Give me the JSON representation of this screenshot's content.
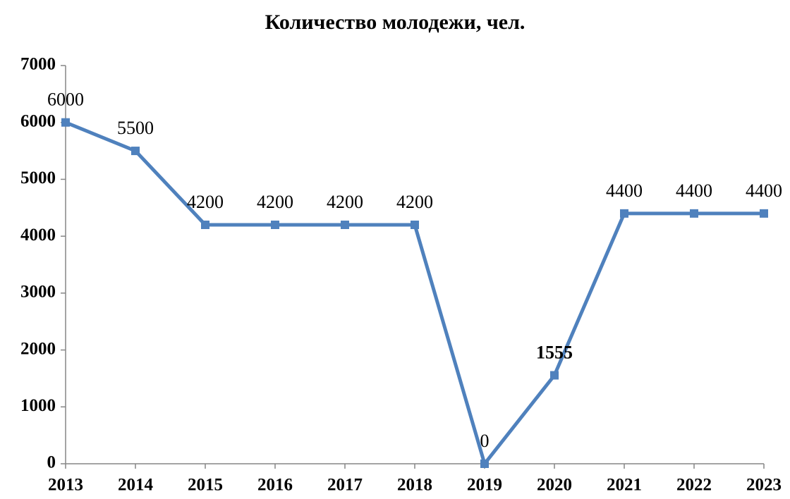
{
  "chart_data": {
    "type": "line",
    "title": "Количество молодежи, чел.",
    "categories": [
      "2013",
      "2014",
      "2015",
      "2016",
      "2017",
      "2018",
      "2019",
      "2020",
      "2021",
      "2022",
      "2023"
    ],
    "series": [
      {
        "name": "Количество молодежи, чел.",
        "color": "#4f81bd",
        "values": [
          6000,
          5500,
          4200,
          4200,
          4200,
          4200,
          0,
          1555,
          4400,
          4400,
          4400
        ]
      }
    ],
    "ylim": [
      0,
      7000
    ],
    "yticks": [
      0,
      1000,
      2000,
      3000,
      4000,
      5000,
      6000,
      7000
    ],
    "grid": false
  }
}
